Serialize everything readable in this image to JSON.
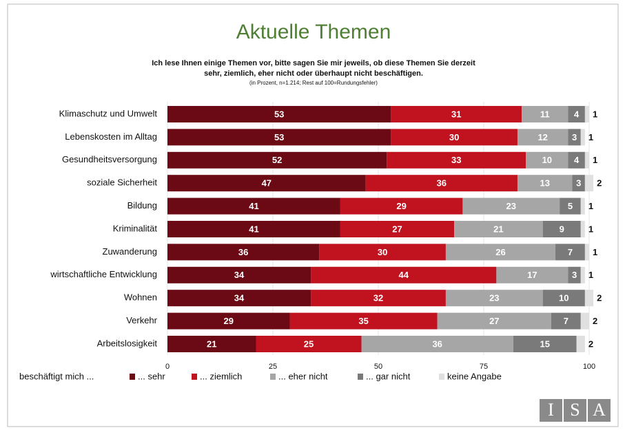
{
  "chart_data": {
    "type": "stacked-barh",
    "title": "Aktuelle Themen",
    "subtitle": [
      "Ich  lese Ihnen einige Themen vor, bitte sagen Sie mir jeweils, ob diese Themen Sie derzeit",
      "sehr, ziemlich, eher nicht oder überhaupt nicht beschäftigen."
    ],
    "note": "(in Prozent, n=1.214; Rest auf 100=Rundungsfehler)",
    "categories": [
      "Klimaschutz und Umwelt",
      "Lebenskosten im Alltag",
      "Gesundheitsversorgung",
      "soziale Sicherheit",
      "Bildung",
      "Kriminalität",
      "Zuwanderung",
      "wirtschaftliche Entwicklung",
      "Wohnen",
      "Verkehr",
      "Arbeitslosigkeit"
    ],
    "series": [
      {
        "name": "... sehr",
        "color": "#6b0a14",
        "values": [
          53,
          53,
          52,
          47,
          41,
          41,
          36,
          34,
          34,
          29,
          21
        ]
      },
      {
        "name": "... ziemlich",
        "color": "#c0121f",
        "values": [
          31,
          30,
          33,
          36,
          29,
          27,
          30,
          44,
          32,
          35,
          25
        ]
      },
      {
        "name": "... eher nicht",
        "color": "#a6a6a6",
        "values": [
          11,
          12,
          10,
          13,
          23,
          21,
          26,
          17,
          23,
          27,
          36
        ]
      },
      {
        "name": "... gar nicht",
        "color": "#7a7a7a",
        "values": [
          4,
          3,
          4,
          3,
          5,
          9,
          7,
          3,
          10,
          7,
          15
        ]
      },
      {
        "name": "keine Angabe",
        "color": "#e0e0e0",
        "values": [
          1,
          1,
          1,
          2,
          1,
          1,
          1,
          1,
          2,
          2,
          2
        ]
      }
    ],
    "legend_title": "beschäftigt mich ...",
    "xlim": [
      0,
      100
    ],
    "xticks": [
      0,
      25,
      50,
      75,
      100
    ],
    "grid": true,
    "logo": [
      "I",
      "S",
      "A"
    ]
  }
}
